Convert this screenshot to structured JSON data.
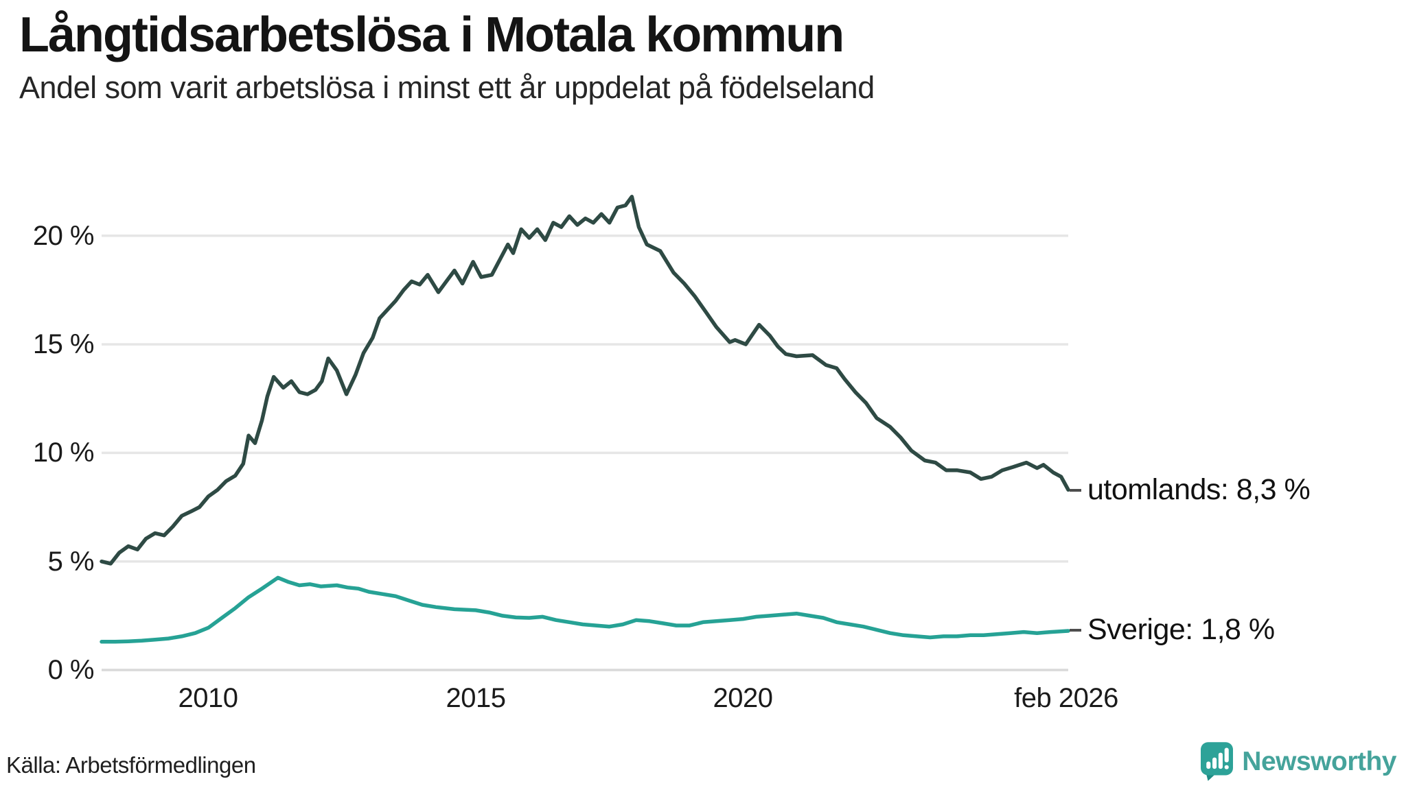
{
  "header": {
    "title": "Långtidsarbetslösa i Motala kommun",
    "subtitle": "Andel som varit arbetslösa i minst ett år uppdelat på födelseland"
  },
  "footer": {
    "source": "Källa: Arbetsförmedlingen",
    "brand_name": "Newsworthy",
    "brand_icon": "newsworthy-speech-bubble-bar-chart-icon"
  },
  "colors": {
    "background": "#ffffff",
    "grid": "#e6e6e6",
    "baseline": "#d9d9d9",
    "series_utomlands": "#2e4a44",
    "series_sverige": "#26a295",
    "brand_teal": "#45a39b",
    "text": "#141414"
  },
  "chart_data": {
    "type": "line",
    "title": "Långtidsarbetslösa i Motala kommun",
    "subtitle": "Andel som varit arbetslösa i minst ett år uppdelat på födelseland",
    "unit": "%",
    "grid": true,
    "legend_position": "end-of-line-labels",
    "x_axis": {
      "range_decimal_years": [
        2008.0,
        2026.083
      ],
      "ticks": [
        {
          "label": "2010",
          "t": 2010
        },
        {
          "label": "2015",
          "t": 2015
        },
        {
          "label": "2020",
          "t": 2020
        },
        {
          "label": "feb 2026",
          "t": 2026.083
        }
      ]
    },
    "y_axis": {
      "range": [
        0,
        22
      ],
      "ticks": [
        {
          "label": "0 %",
          "value": 0
        },
        {
          "label": "5 %",
          "value": 5
        },
        {
          "label": "10 %",
          "value": 10
        },
        {
          "label": "15 %",
          "value": 15
        },
        {
          "label": "20 %",
          "value": 20
        }
      ]
    },
    "series": [
      {
        "name": "utomlands",
        "end_label": "utomlands: 8,3 %",
        "end_value": 8.3,
        "color": "#2e4a44",
        "points": [
          [
            2008.0,
            5.0
          ],
          [
            2008.17,
            4.9
          ],
          [
            2008.33,
            5.4
          ],
          [
            2008.5,
            5.7
          ],
          [
            2008.67,
            5.55
          ],
          [
            2008.83,
            6.05
          ],
          [
            2009.0,
            6.3
          ],
          [
            2009.17,
            6.2
          ],
          [
            2009.33,
            6.6
          ],
          [
            2009.5,
            7.1
          ],
          [
            2009.67,
            7.3
          ],
          [
            2009.83,
            7.5
          ],
          [
            2010.0,
            8.0
          ],
          [
            2010.17,
            8.3
          ],
          [
            2010.33,
            8.7
          ],
          [
            2010.5,
            8.95
          ],
          [
            2010.65,
            9.5
          ],
          [
            2010.75,
            10.8
          ],
          [
            2010.87,
            10.45
          ],
          [
            2011.0,
            11.5
          ],
          [
            2011.1,
            12.6
          ],
          [
            2011.22,
            13.5
          ],
          [
            2011.4,
            13.0
          ],
          [
            2011.55,
            13.3
          ],
          [
            2011.7,
            12.8
          ],
          [
            2011.85,
            12.7
          ],
          [
            2012.0,
            12.9
          ],
          [
            2012.12,
            13.3
          ],
          [
            2012.24,
            14.35
          ],
          [
            2012.4,
            13.8
          ],
          [
            2012.58,
            12.7
          ],
          [
            2012.75,
            13.6
          ],
          [
            2012.9,
            14.6
          ],
          [
            2013.07,
            15.3
          ],
          [
            2013.2,
            16.2
          ],
          [
            2013.35,
            16.6
          ],
          [
            2013.5,
            17.0
          ],
          [
            2013.65,
            17.5
          ],
          [
            2013.8,
            17.9
          ],
          [
            2013.95,
            17.75
          ],
          [
            2014.1,
            18.2
          ],
          [
            2014.3,
            17.4
          ],
          [
            2014.45,
            17.9
          ],
          [
            2014.6,
            18.4
          ],
          [
            2014.75,
            17.8
          ],
          [
            2014.95,
            18.8
          ],
          [
            2015.1,
            18.1
          ],
          [
            2015.3,
            18.2
          ],
          [
            2015.45,
            18.9
          ],
          [
            2015.6,
            19.6
          ],
          [
            2015.7,
            19.2
          ],
          [
            2015.85,
            20.3
          ],
          [
            2016.0,
            19.9
          ],
          [
            2016.15,
            20.3
          ],
          [
            2016.3,
            19.8
          ],
          [
            2016.45,
            20.6
          ],
          [
            2016.6,
            20.4
          ],
          [
            2016.75,
            20.9
          ],
          [
            2016.9,
            20.5
          ],
          [
            2017.05,
            20.8
          ],
          [
            2017.2,
            20.6
          ],
          [
            2017.35,
            21.0
          ],
          [
            2017.5,
            20.6
          ],
          [
            2017.65,
            21.3
          ],
          [
            2017.8,
            21.4
          ],
          [
            2017.92,
            21.8
          ],
          [
            2018.05,
            20.4
          ],
          [
            2018.2,
            19.6
          ],
          [
            2018.45,
            19.3
          ],
          [
            2018.7,
            18.3
          ],
          [
            2018.9,
            17.8
          ],
          [
            2019.1,
            17.2
          ],
          [
            2019.3,
            16.5
          ],
          [
            2019.5,
            15.8
          ],
          [
            2019.75,
            15.1
          ],
          [
            2019.85,
            15.2
          ],
          [
            2020.05,
            15.0
          ],
          [
            2020.3,
            15.9
          ],
          [
            2020.5,
            15.4
          ],
          [
            2020.65,
            14.9
          ],
          [
            2020.8,
            14.55
          ],
          [
            2021.0,
            14.45
          ],
          [
            2021.3,
            14.5
          ],
          [
            2021.55,
            14.05
          ],
          [
            2021.75,
            13.9
          ],
          [
            2021.9,
            13.4
          ],
          [
            2022.1,
            12.8
          ],
          [
            2022.3,
            12.3
          ],
          [
            2022.5,
            11.6
          ],
          [
            2022.75,
            11.2
          ],
          [
            2022.95,
            10.7
          ],
          [
            2023.15,
            10.1
          ],
          [
            2023.4,
            9.65
          ],
          [
            2023.6,
            9.55
          ],
          [
            2023.8,
            9.2
          ],
          [
            2024.0,
            9.2
          ],
          [
            2024.25,
            9.1
          ],
          [
            2024.45,
            8.8
          ],
          [
            2024.65,
            8.9
          ],
          [
            2024.85,
            9.2
          ],
          [
            2025.05,
            9.35
          ],
          [
            2025.3,
            9.55
          ],
          [
            2025.5,
            9.3
          ],
          [
            2025.62,
            9.45
          ],
          [
            2025.8,
            9.1
          ],
          [
            2025.95,
            8.9
          ],
          [
            2026.083,
            8.3
          ]
        ]
      },
      {
        "name": "Sverige",
        "end_label": "Sverige: 1,8 %",
        "end_value": 1.8,
        "color": "#26a295",
        "points": [
          [
            2008.0,
            1.3
          ],
          [
            2008.25,
            1.3
          ],
          [
            2008.5,
            1.32
          ],
          [
            2008.75,
            1.35
          ],
          [
            2009.0,
            1.4
          ],
          [
            2009.25,
            1.45
          ],
          [
            2009.5,
            1.55
          ],
          [
            2009.75,
            1.7
          ],
          [
            2010.0,
            1.95
          ],
          [
            2010.25,
            2.4
          ],
          [
            2010.5,
            2.85
          ],
          [
            2010.75,
            3.35
          ],
          [
            2011.0,
            3.75
          ],
          [
            2011.3,
            4.25
          ],
          [
            2011.5,
            4.05
          ],
          [
            2011.7,
            3.9
          ],
          [
            2011.9,
            3.95
          ],
          [
            2012.1,
            3.85
          ],
          [
            2012.4,
            3.9
          ],
          [
            2012.6,
            3.8
          ],
          [
            2012.8,
            3.75
          ],
          [
            2013.0,
            3.6
          ],
          [
            2013.25,
            3.5
          ],
          [
            2013.5,
            3.4
          ],
          [
            2013.75,
            3.2
          ],
          [
            2014.0,
            3.0
          ],
          [
            2014.25,
            2.9
          ],
          [
            2014.6,
            2.8
          ],
          [
            2015.0,
            2.75
          ],
          [
            2015.25,
            2.65
          ],
          [
            2015.5,
            2.5
          ],
          [
            2015.75,
            2.42
          ],
          [
            2016.0,
            2.4
          ],
          [
            2016.25,
            2.45
          ],
          [
            2016.5,
            2.3
          ],
          [
            2016.75,
            2.2
          ],
          [
            2017.0,
            2.1
          ],
          [
            2017.25,
            2.05
          ],
          [
            2017.5,
            2.0
          ],
          [
            2017.75,
            2.1
          ],
          [
            2018.0,
            2.3
          ],
          [
            2018.25,
            2.25
          ],
          [
            2018.5,
            2.15
          ],
          [
            2018.75,
            2.05
          ],
          [
            2019.0,
            2.05
          ],
          [
            2019.25,
            2.2
          ],
          [
            2019.5,
            2.25
          ],
          [
            2019.75,
            2.3
          ],
          [
            2020.0,
            2.35
          ],
          [
            2020.25,
            2.45
          ],
          [
            2020.5,
            2.5
          ],
          [
            2020.75,
            2.55
          ],
          [
            2021.0,
            2.6
          ],
          [
            2021.25,
            2.5
          ],
          [
            2021.5,
            2.4
          ],
          [
            2021.75,
            2.2
          ],
          [
            2022.0,
            2.1
          ],
          [
            2022.25,
            2.0
          ],
          [
            2022.5,
            1.85
          ],
          [
            2022.75,
            1.7
          ],
          [
            2023.0,
            1.6
          ],
          [
            2023.25,
            1.55
          ],
          [
            2023.5,
            1.5
          ],
          [
            2023.75,
            1.55
          ],
          [
            2024.0,
            1.55
          ],
          [
            2024.25,
            1.6
          ],
          [
            2024.5,
            1.6
          ],
          [
            2024.75,
            1.65
          ],
          [
            2025.0,
            1.7
          ],
          [
            2025.25,
            1.75
          ],
          [
            2025.5,
            1.7
          ],
          [
            2025.75,
            1.75
          ],
          [
            2026.083,
            1.8
          ]
        ]
      }
    ]
  }
}
